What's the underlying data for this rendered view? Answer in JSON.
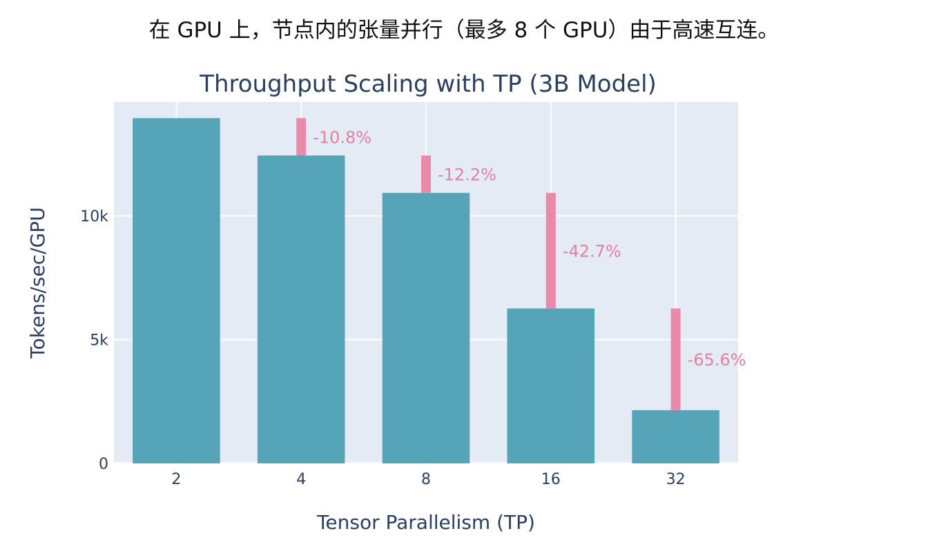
{
  "caption": "在 GPU 上，节点内的张量并行（最多 8 个 GPU）由于高速互连。",
  "chart_data": {
    "type": "bar",
    "title": "Throughput Scaling with TP (3B Model)",
    "xlabel": "Tensor Parallelism (TP)",
    "ylabel": "Tokens/sec/GPU",
    "categories": [
      "2",
      "4",
      "8",
      "16",
      "32"
    ],
    "values": [
      13950,
      12440,
      10930,
      6260,
      2150
    ],
    "ylim": [
      0,
      14600
    ],
    "yticks": [
      0,
      5000,
      10000
    ],
    "ytick_labels": [
      "0",
      "5k",
      "10k"
    ],
    "grid": true,
    "drops": [
      {
        "from_category": "2",
        "to_category": "4",
        "label": "-10.8%"
      },
      {
        "from_category": "4",
        "to_category": "8",
        "label": "-12.2%"
      },
      {
        "from_category": "8",
        "to_category": "16",
        "label": "-42.7%"
      },
      {
        "from_category": "16",
        "to_category": "32",
        "label": "-65.6%"
      }
    ],
    "colors": {
      "bar": "#56a4b8",
      "drop": "#e98aa9",
      "drop_label": "#e47f9f",
      "plot_bg": "#e5ebf5",
      "grid": "#ffffff",
      "text": "#2a3f5f"
    }
  }
}
